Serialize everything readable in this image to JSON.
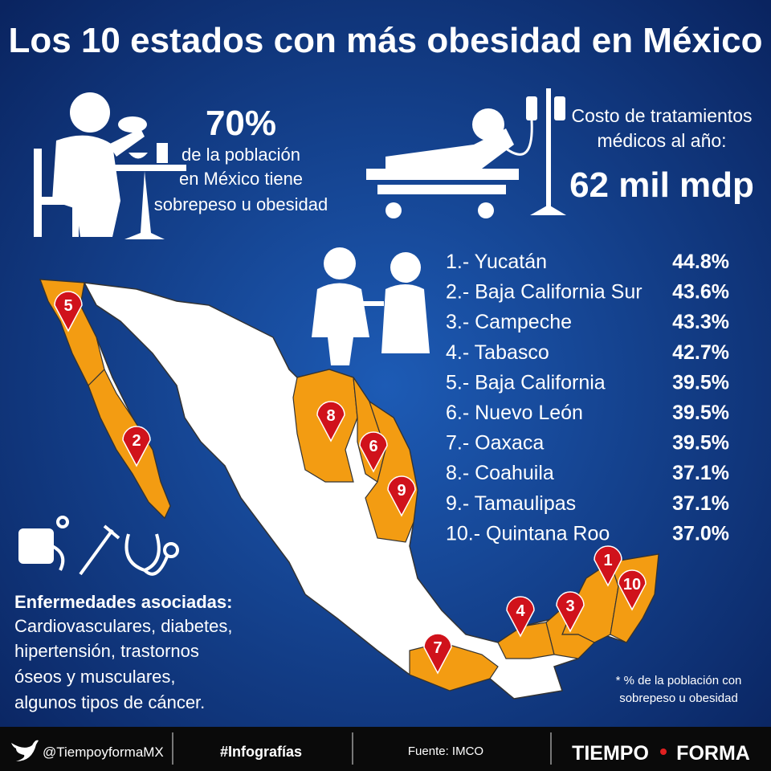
{
  "title": "Los 10 estados con más obesidad en México",
  "stat_population": {
    "value": "70%",
    "lines": [
      "de la población",
      "en México tiene",
      "sobrepeso u obesidad"
    ]
  },
  "stat_cost": {
    "lines": [
      "Costo de tratamientos",
      "médicos al año:"
    ],
    "value": "62 mil mdp"
  },
  "ranking": [
    {
      "label": "1.- Yucatán",
      "value": "44.8%"
    },
    {
      "label": "2.- Baja California Sur",
      "value": "43.6%"
    },
    {
      "label": "3.- Campeche",
      "value": "43.3%"
    },
    {
      "label": "4.- Tabasco",
      "value": "42.7%"
    },
    {
      "label": "5.- Baja California",
      "value": "39.5%"
    },
    {
      "label": "6.- Nuevo León",
      "value": "39.5%"
    },
    {
      "label": "7.- Oaxaca",
      "value": "39.5%"
    },
    {
      "label": "8.- Coahuila",
      "value": "37.1%"
    },
    {
      "label": "9.- Tamaulipas",
      "value": "37.1%"
    },
    {
      "label": "10.- Quintana Roo",
      "value": "37.0%"
    }
  ],
  "map_pins": [
    "5",
    "2",
    "8",
    "6",
    "9",
    "1",
    "10",
    "3",
    "4",
    "7"
  ],
  "diseases": {
    "title": "Enfermedades asociadas:",
    "lines": [
      "Cardiovasculares, diabetes,",
      "hipertensión, trastornos",
      "óseos y musculares,",
      "algunos tipos de cáncer."
    ]
  },
  "footnote": [
    "* % de la población con",
    "sobrepeso u obesidad"
  ],
  "footer": {
    "handle": "@TiempoyformaMX",
    "hashtag": "#Infografías",
    "source": "Fuente: IMCO",
    "brand": [
      "TIEMPO",
      "FORMA"
    ]
  }
}
